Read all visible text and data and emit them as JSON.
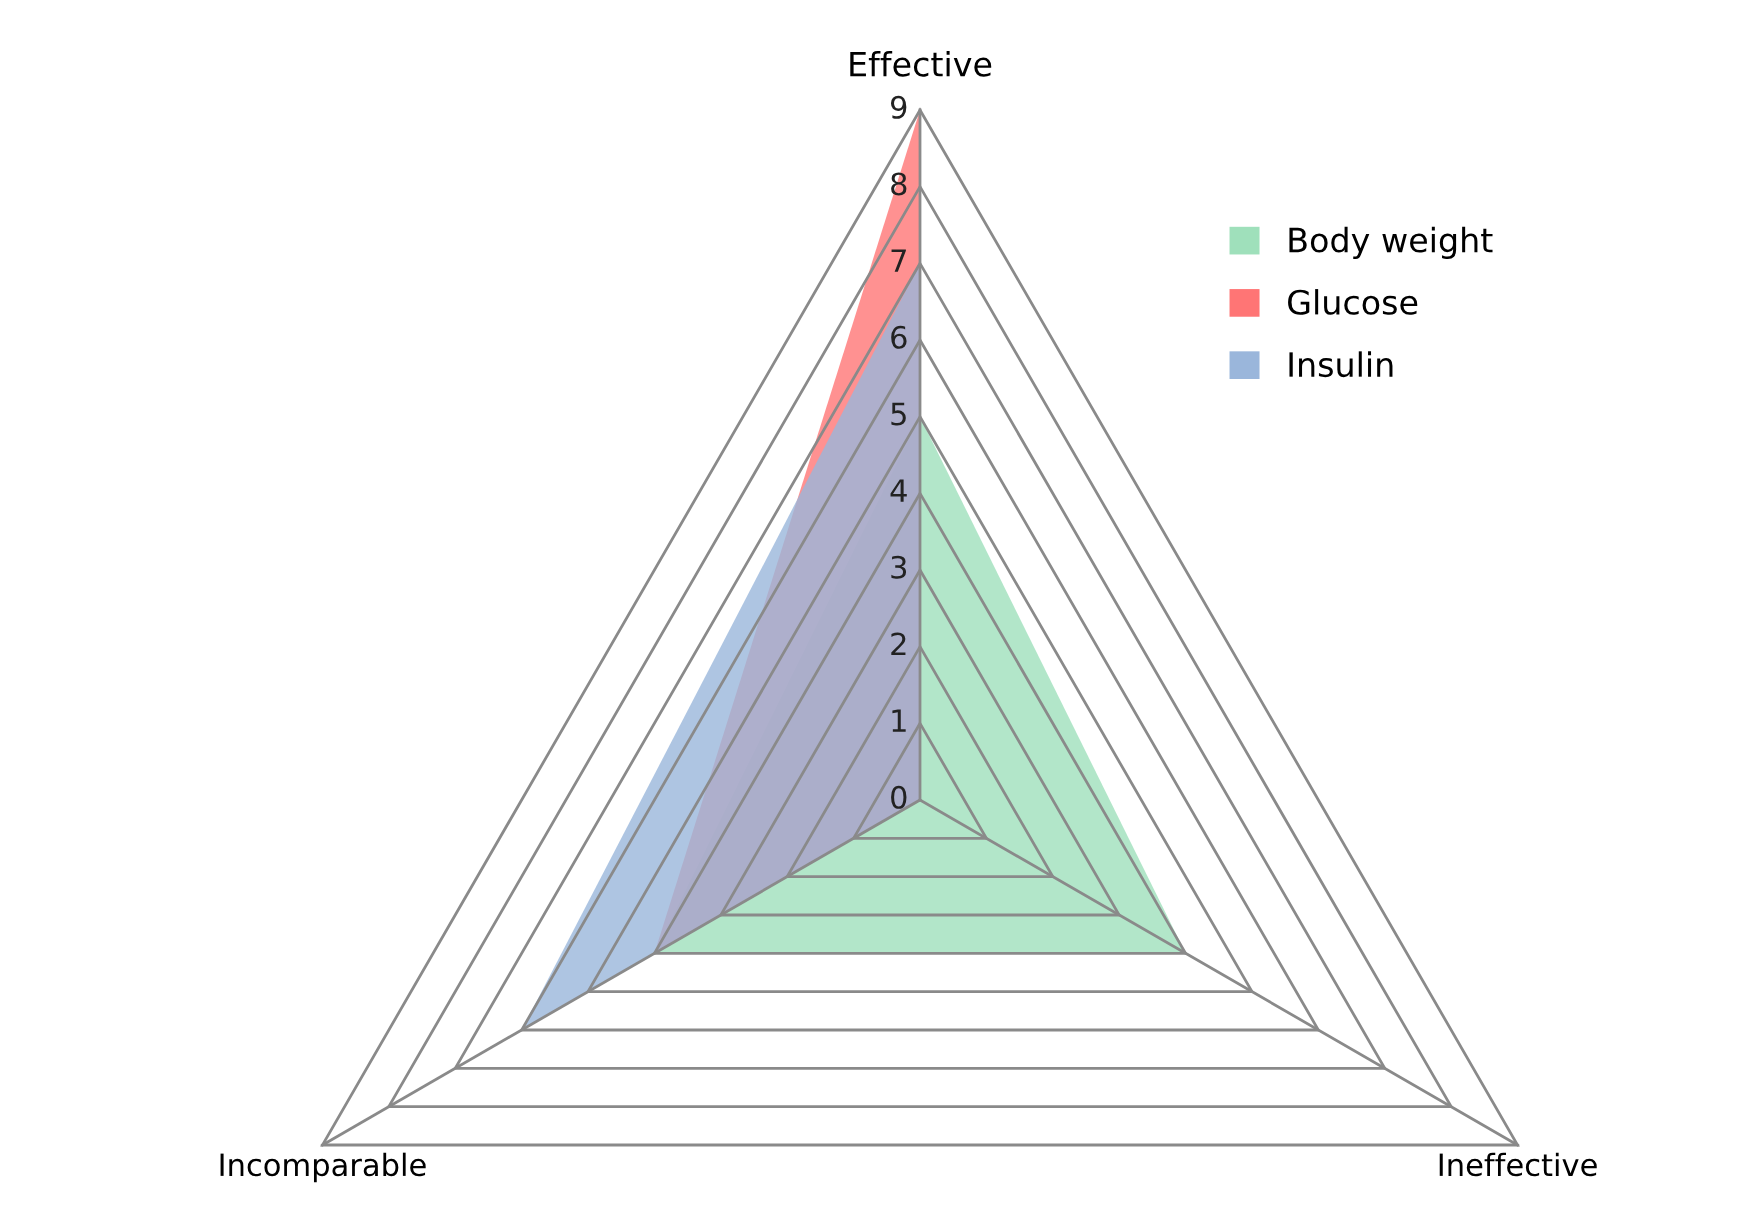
{
  "chart_data": {
    "type": "radar",
    "categories": [
      "Effective",
      "Ineffective",
      "Incomparable"
    ],
    "series": [
      {
        "name": "Body weight",
        "color": "#9fe0bb",
        "values": [
          5,
          4,
          4
        ]
      },
      {
        "name": "Glucose",
        "color": "#ff7575",
        "values": [
          9,
          0,
          4
        ]
      },
      {
        "name": "Insulin",
        "color": "#9ab6db",
        "values": [
          7,
          0,
          6
        ]
      }
    ],
    "ylim": [
      0,
      9
    ],
    "yticks": [
      0,
      1,
      2,
      3,
      4,
      5,
      6,
      7,
      8,
      9
    ],
    "grid": true,
    "legend": "top right"
  }
}
